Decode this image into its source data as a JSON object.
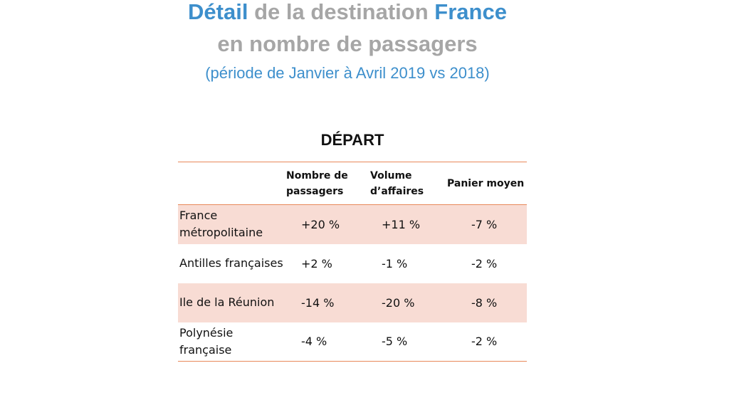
{
  "title": {
    "line1_part1": "Détail",
    "line1_part2": " de la destination ",
    "line1_part3": "France",
    "line2": "en nombre de passagers",
    "line3": "(période de Janvier à Avril 2019 vs 2018)"
  },
  "table": {
    "section_title": "DÉPART",
    "headers": [
      "",
      "Nombre de passagers",
      "Volume d’affaires",
      "Panier moyen"
    ],
    "rows": [
      {
        "label": "France métropolitaine",
        "passagers": "+20 %",
        "volume": "+11 %",
        "panier": "-7 %"
      },
      {
        "label": "Antilles françaises",
        "passagers": "+2 %",
        "volume": "-1 %",
        "panier": "-2 %"
      },
      {
        "label": "Ile de la Réunion",
        "passagers": "-14 %",
        "volume": "-20 %",
        "panier": "-8 %"
      },
      {
        "label": "Polynésie française",
        "passagers": "-4 %",
        "volume": "-5 %",
        "panier": "-2 %"
      }
    ]
  },
  "colors": {
    "accent_blue": "#3d8fcc",
    "title_gray": "#a6a6a6",
    "rule_orange": "#e8885a",
    "row_shade": "#f8dcd4"
  }
}
